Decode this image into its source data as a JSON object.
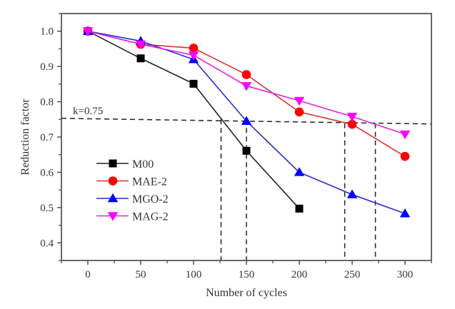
{
  "chart_data": {
    "type": "line",
    "title": "",
    "xlabel": "Number of cycles",
    "ylabel": "Reduction factor",
    "xlim": [
      -25,
      325
    ],
    "ylim": [
      0.35,
      1.05
    ],
    "xticks": [
      0,
      50,
      100,
      150,
      200,
      250,
      300
    ],
    "xtick_labels": [
      "0",
      "50",
      "100",
      "150",
      "200",
      "250",
      "300"
    ],
    "xminor_ticks": [
      -25,
      25,
      75,
      125,
      175,
      225,
      275,
      325
    ],
    "yticks": [
      0.4,
      0.5,
      0.6,
      0.7,
      0.8,
      0.9,
      1.0
    ],
    "ytick_labels": [
      "0.4",
      "0.5",
      "0.6",
      "0.7",
      "0.8",
      "0.9",
      "1.0"
    ],
    "yminor_ticks": [
      0.35,
      0.45,
      0.55,
      0.65,
      0.75,
      0.85,
      0.95,
      1.05
    ],
    "grid": false,
    "legend_position": "lower-left",
    "series": [
      {
        "name": "M00",
        "marker": "square",
        "color": "#000000",
        "line_color": "#222222",
        "x": [
          0,
          50,
          100,
          150,
          200
        ],
        "y": [
          1.0,
          0.923,
          0.851,
          0.661,
          0.497
        ]
      },
      {
        "name": "MAE-2",
        "marker": "circle",
        "color": "#ff0000",
        "line_color": "#d93030",
        "x": [
          0,
          50,
          100,
          150,
          200,
          250,
          300
        ],
        "y": [
          1.0,
          0.963,
          0.952,
          0.877,
          0.771,
          0.736,
          0.645
        ]
      },
      {
        "name": "MGO-2",
        "marker": "triangle-up",
        "color": "#0000ff",
        "line_color": "#2a2ad0",
        "x": [
          0,
          50,
          100,
          150,
          200,
          250,
          300
        ],
        "y": [
          1.0,
          0.972,
          0.92,
          0.745,
          0.6,
          0.537,
          0.483
        ]
      },
      {
        "name": "MAG-2",
        "marker": "triangle-down",
        "color": "#ff00ff",
        "line_color": "#e020e0",
        "x": [
          0,
          50,
          100,
          150,
          200,
          250,
          300
        ],
        "y": [
          1.0,
          0.963,
          0.932,
          0.845,
          0.803,
          0.758,
          0.708
        ]
      }
    ],
    "reference_lines": {
      "horizontal": {
        "label": "k=0.75",
        "x": [
          -25,
          325
        ],
        "y": [
          0.753,
          0.737
        ]
      },
      "vertical": [
        {
          "x": 126,
          "y_top": 0.75
        },
        {
          "x": 150,
          "y_top": 0.75
        },
        {
          "x": 243,
          "y_top": 0.739
        },
        {
          "x": 272,
          "y_top": 0.739
        }
      ]
    }
  }
}
